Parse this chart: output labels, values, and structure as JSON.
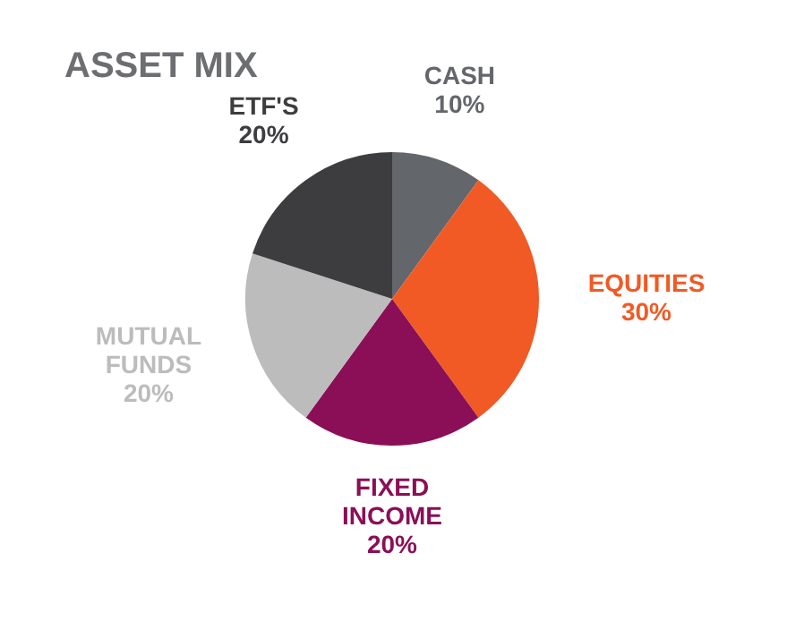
{
  "chart_data": {
    "type": "pie",
    "title": "ASSET MIX",
    "categories": [
      "CASH",
      "EQUITIES",
      "FIXED INCOME",
      "MUTUAL FUNDS",
      "ETF'S"
    ],
    "values": [
      10,
      30,
      20,
      20,
      20
    ],
    "value_labels": [
      "10%",
      "30%",
      "20%",
      "20%",
      "20%"
    ],
    "colors": [
      "#63666a",
      "#f15a24",
      "#8b0f57",
      "#bcbcbc",
      "#3d3d40"
    ],
    "legend": false
  }
}
